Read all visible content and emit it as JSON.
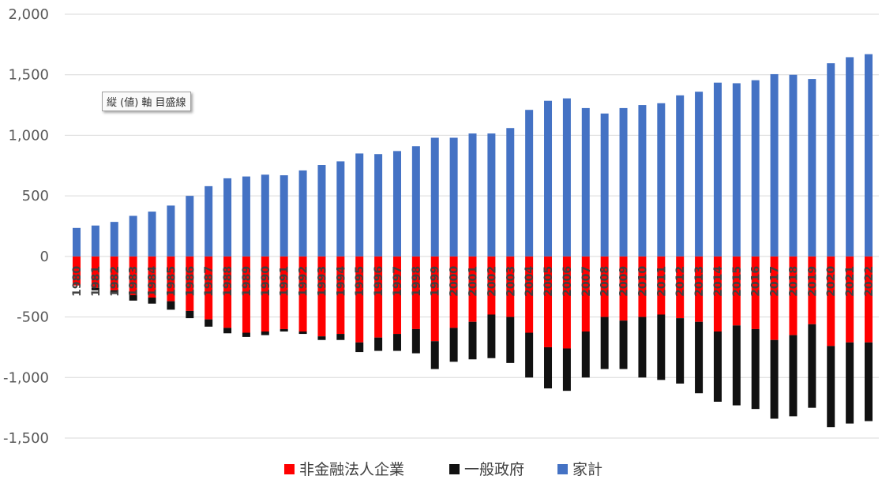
{
  "tooltip": "縦 (値) 軸 目盛線",
  "colors": {
    "nonfin": "#ff0000",
    "gov": "#111111",
    "household": "#4472c4",
    "grid": "#d9d9d9"
  },
  "chart_data": {
    "type": "bar",
    "stacked": true,
    "grid": true,
    "legend_position": "bottom",
    "ylim": [
      -1500,
      2000
    ],
    "yticks": [
      2000,
      1500,
      1000,
      500,
      0,
      -500,
      -1000,
      -1500
    ],
    "ytick_labels": [
      "2,000",
      "1,500",
      "1,000",
      "500",
      "0",
      "-500",
      "-1,000",
      "-1,500"
    ],
    "categories": [
      "1980",
      "1981",
      "1982",
      "1983",
      "1984",
      "1985",
      "1986",
      "1987",
      "1988",
      "1989",
      "1990",
      "1991",
      "1992",
      "1993",
      "1994",
      "1995",
      "1996",
      "1997",
      "1998",
      "1999",
      "2000",
      "2001",
      "2002",
      "2003",
      "2004",
      "2005",
      "2006",
      "2007",
      "2008",
      "2009",
      "2010",
      "2011",
      "2012",
      "2013",
      "2014",
      "2015",
      "2016",
      "2017",
      "2018",
      "2019",
      "2020",
      "2021",
      "2022"
    ],
    "series": [
      {
        "name": "非金融法人企業",
        "values": [
          -240,
          -260,
          -280,
          -320,
          -340,
          -370,
          -450,
          -520,
          -590,
          -630,
          -620,
          -600,
          -620,
          -660,
          -640,
          -710,
          -670,
          -640,
          -600,
          -700,
          -590,
          -540,
          -480,
          -500,
          -630,
          -750,
          -760,
          -620,
          -500,
          -530,
          -500,
          -480,
          -510,
          -540,
          -620,
          -570,
          -600,
          -690,
          -650,
          -560,
          -740,
          -710,
          -710
        ]
      },
      {
        "name": "一般政府",
        "values": [
          0,
          -20,
          -30,
          -45,
          -50,
          -70,
          -60,
          -60,
          -45,
          -35,
          -30,
          -20,
          -20,
          -30,
          -50,
          -80,
          -110,
          -140,
          -200,
          -230,
          -280,
          -310,
          -360,
          -380,
          -370,
          -340,
          -350,
          -380,
          -430,
          -400,
          -500,
          -540,
          -540,
          -590,
          -580,
          -660,
          -660,
          -650,
          -670,
          -690,
          -670,
          -670,
          -650
        ]
      },
      {
        "name": "家計",
        "values": [
          235,
          255,
          285,
          335,
          370,
          420,
          500,
          580,
          645,
          660,
          675,
          670,
          710,
          755,
          785,
          850,
          845,
          870,
          910,
          980,
          980,
          1015,
          1015,
          1060,
          1210,
          1285,
          1305,
          1225,
          1180,
          1225,
          1250,
          1265,
          1330,
          1360,
          1435,
          1430,
          1455,
          1505,
          1500,
          1465,
          1595,
          1645,
          1670
        ]
      }
    ]
  }
}
